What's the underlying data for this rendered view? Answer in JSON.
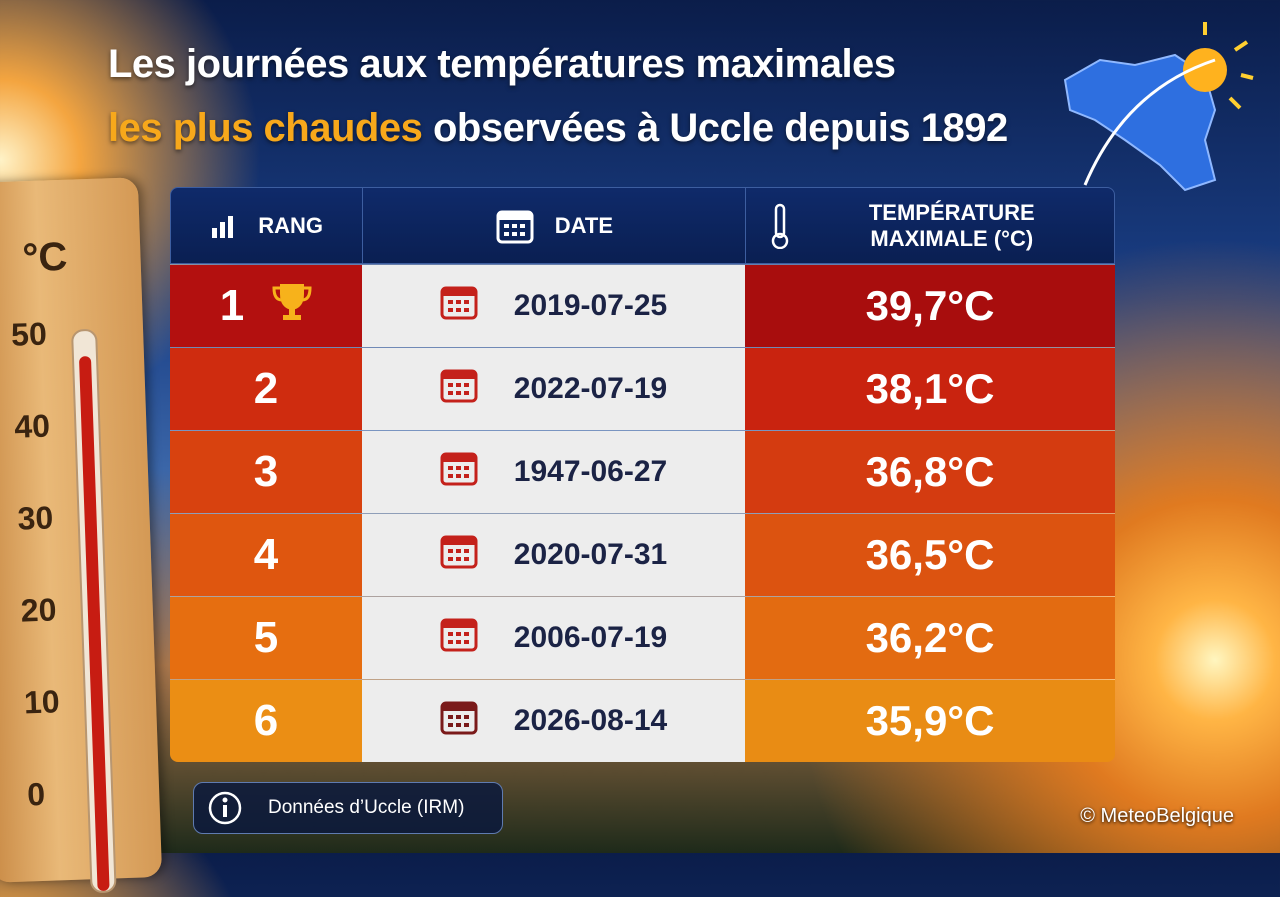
{
  "header": {
    "title_line1": "Les journées aux températures maximales",
    "title_highlight": "les plus chaudes",
    "title_rest": "observées à Uccle depuis 1892"
  },
  "thermometer": {
    "unit": "°C",
    "labels": [
      "50",
      "40",
      "30",
      "20",
      "10",
      "0"
    ]
  },
  "table": {
    "columns": [
      "RANG",
      "DATE",
      "TEMPÉRATURE MAXIMALE (°C)"
    ],
    "rows": [
      [
        "1",
        "2019-07-25",
        "39,7°C"
      ],
      [
        "2",
        "2022-07-19",
        "38,1°C"
      ],
      [
        "3",
        "1947-06-27",
        "36,8°C"
      ],
      [
        "4",
        "2020-07-31",
        "36,5°C"
      ],
      [
        "5",
        "2006-07-19",
        "36,2°C"
      ],
      [
        "6",
        "2026-08-14",
        "35,9°C"
      ]
    ]
  },
  "footer": {
    "source": "Données d’Uccle (IRM)",
    "copyright": "© MeteoBelgique"
  }
}
